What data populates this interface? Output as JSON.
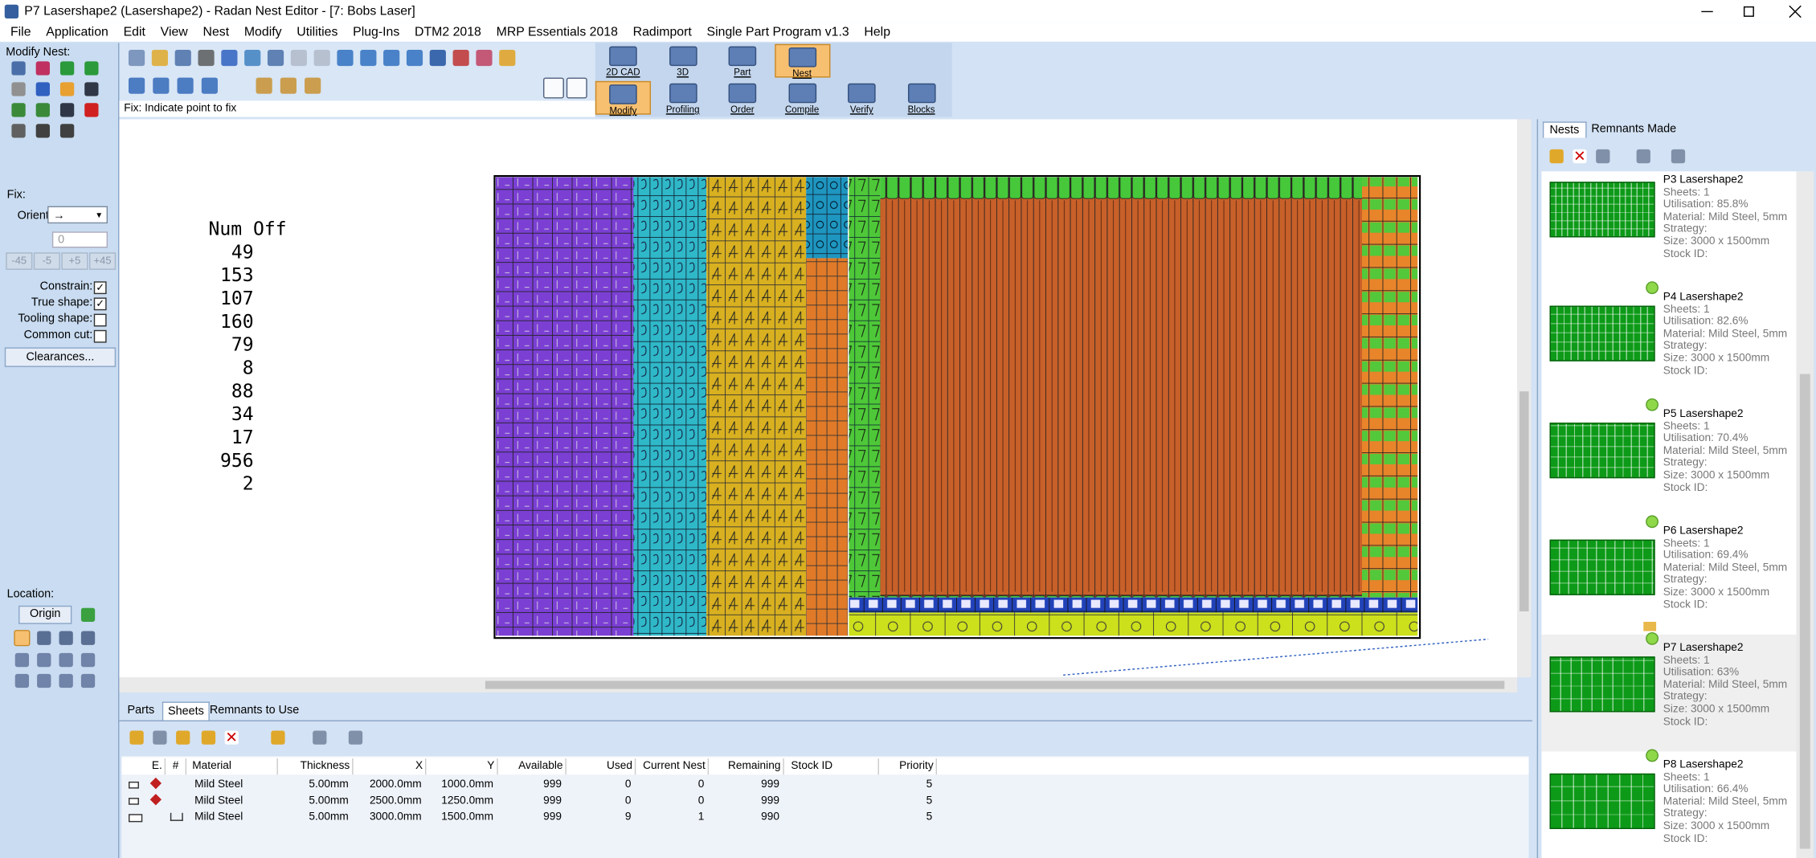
{
  "window": {
    "title": "P7 Lasershape2 (Lasershape2) - Radan Nest Editor - [7: Bobs Laser]"
  },
  "menu": [
    "File",
    "Application",
    "Edit",
    "View",
    "Nest",
    "Modify",
    "Utilities",
    "Plug-Ins",
    "DTM2 2018",
    "MRP Essentials 2018",
    "Radimport",
    "Single Part Program v1.3",
    "Help"
  ],
  "toolbar": {
    "modes": [
      "2D CAD",
      "3D",
      "Part",
      "Nest"
    ],
    "tools": [
      "Modify",
      "Profiling",
      "Order",
      "Compile",
      "Verify",
      "Blocks"
    ],
    "status": "Fix: Indicate point to fix"
  },
  "left_panel": {
    "heading": "Modify Nest:",
    "fix_label": "Fix:",
    "orient_label": "Orient:",
    "orient_value": "→",
    "angle_value": "0",
    "angle_buttons": [
      "-45",
      "-5",
      "+5",
      "+45"
    ],
    "checkboxes": [
      {
        "label": "Constrain:",
        "checked": true
      },
      {
        "label": "True shape:",
        "checked": true
      },
      {
        "label": "Tooling shape:",
        "checked": false
      },
      {
        "label": "Common cut:",
        "checked": false
      }
    ],
    "clearances": "Clearances...",
    "location_label": "Location:",
    "origin": "Origin"
  },
  "canvas": {
    "num_off_heading": "Num Off",
    "num_off": [
      49,
      153,
      107,
      160,
      79,
      8,
      88,
      34,
      17,
      956,
      2
    ]
  },
  "right_panel": {
    "tabs": [
      "Nests",
      "Remnants Made"
    ],
    "nests": [
      {
        "name": "P3 Lasershape2",
        "sheets": "Sheets: 1",
        "utilisation": "Utilisation: 85.8%",
        "material": "Material: Mild Steel, 5mm",
        "strategy": "Strategy:",
        "size": "Size: 3000 x 1500mm",
        "stock_id": "Stock ID:"
      },
      {
        "name": "P4 Lasershape2",
        "sheets": "Sheets: 1",
        "utilisation": "Utilisation: 82.6%",
        "material": "Material: Mild Steel, 5mm",
        "strategy": "Strategy:",
        "size": "Size: 3000 x 1500mm",
        "stock_id": "Stock ID:"
      },
      {
        "name": "P5 Lasershape2",
        "sheets": "Sheets: 1",
        "utilisation": "Utilisation: 70.4%",
        "material": "Material: Mild Steel, 5mm",
        "strategy": "Strategy:",
        "size": "Size: 3000 x 1500mm",
        "stock_id": "Stock ID:"
      },
      {
        "name": "P6 Lasershape2",
        "sheets": "Sheets: 1",
        "utilisation": "Utilisation: 69.4%",
        "material": "Material: Mild Steel, 5mm",
        "strategy": "Strategy:",
        "size": "Size: 3000 x 1500mm",
        "stock_id": "Stock ID:"
      },
      {
        "name": "P7 Lasershape2",
        "sheets": "Sheets: 1",
        "utilisation": "Utilisation: 63%",
        "material": "Material: Mild Steel, 5mm",
        "strategy": "Strategy:",
        "size": "Size: 3000 x 1500mm",
        "stock_id": "Stock ID:"
      },
      {
        "name": "P8 Lasershape2",
        "sheets": "Sheets: 1",
        "utilisation": "Utilisation: 66.4%",
        "material": "Material: Mild Steel, 5mm",
        "strategy": "Strategy:",
        "size": "Size: 3000 x 1500mm",
        "stock_id": "Stock ID:"
      }
    ]
  },
  "bottom_panel": {
    "tabs": [
      "Parts",
      "Sheets",
      "Remnants to Use"
    ],
    "table": {
      "columns": [
        "E.",
        "#",
        "Material",
        "Thickness",
        "X",
        "Y",
        "Available",
        "Used",
        "Current Nest",
        "Remaining",
        "Stock ID",
        "Priority"
      ],
      "rows": [
        {
          "material": "Mild Steel",
          "thickness": "5.00mm",
          "x": "2000.0mm",
          "y": "1000.0mm",
          "available": "999",
          "used": "0",
          "current_nest": "0",
          "remaining": "999",
          "priority": "5"
        },
        {
          "material": "Mild Steel",
          "thickness": "5.00mm",
          "x": "2500.0mm",
          "y": "1250.0mm",
          "available": "999",
          "used": "0",
          "current_nest": "0",
          "remaining": "999",
          "priority": "5"
        },
        {
          "material": "Mild Steel",
          "thickness": "5.00mm",
          "x": "3000.0mm",
          "y": "1500.0mm",
          "available": "999",
          "used": "9",
          "current_nest": "1",
          "remaining": "990",
          "priority": "5"
        }
      ]
    }
  }
}
